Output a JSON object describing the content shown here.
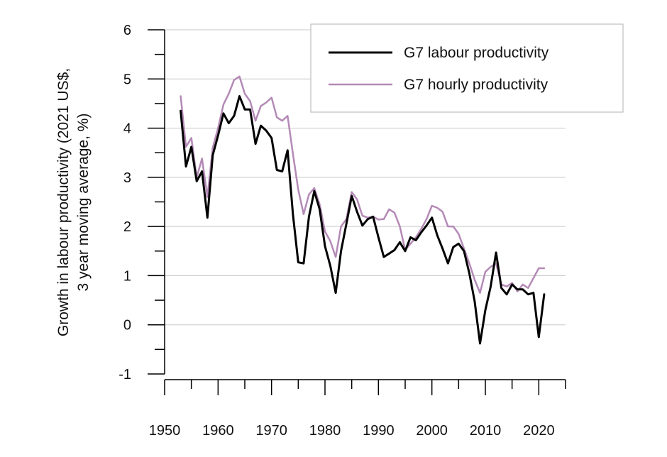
{
  "chart_data": {
    "type": "line",
    "title": "",
    "xlabel": "",
    "ylabel_lines": [
      "Growth in labour productivity (2021 US$,",
      "3 year moving average, %)"
    ],
    "xlim": [
      1950,
      2025
    ],
    "ylim": [
      -1,
      6
    ],
    "xticks": [
      1950,
      1960,
      1970,
      1980,
      1990,
      2000,
      2010,
      2020
    ],
    "yticks": [
      -1,
      0,
      1,
      2,
      3,
      4,
      5,
      6
    ],
    "grid": "horizontal",
    "legend_position": "top-right",
    "colors": {
      "labour": "#000000",
      "hourly": "#b48ab6",
      "grid": "#c8c8c8",
      "axis": "#000000"
    },
    "series": [
      {
        "name": "G7 labour productivity",
        "color": "#000000",
        "x": [
          1953,
          1954,
          1955,
          1956,
          1957,
          1958,
          1959,
          1960,
          1961,
          1962,
          1963,
          1964,
          1965,
          1966,
          1967,
          1968,
          1969,
          1970,
          1971,
          1972,
          1973,
          1974,
          1975,
          1976,
          1977,
          1978,
          1979,
          1980,
          1981,
          1982,
          1983,
          1984,
          1985,
          1986,
          1987,
          1988,
          1989,
          1990,
          1991,
          1992,
          1993,
          1994,
          1995,
          1996,
          1997,
          1998,
          1999,
          2000,
          2001,
          2002,
          2003,
          2004,
          2005,
          2006,
          2007,
          2008,
          2009,
          2010,
          2011,
          2012,
          2013,
          2014,
          2015,
          2016,
          2017,
          2018,
          2019,
          2020,
          2021
        ],
        "y": [
          4.35,
          3.22,
          3.62,
          2.92,
          3.12,
          2.18,
          3.45,
          3.85,
          4.3,
          4.1,
          4.25,
          4.65,
          4.38,
          4.38,
          3.68,
          4.05,
          3.95,
          3.8,
          3.15,
          3.12,
          3.55,
          2.25,
          1.27,
          1.25,
          2.2,
          2.72,
          2.35,
          1.6,
          1.2,
          0.65,
          1.5,
          2.05,
          2.62,
          2.3,
          2.02,
          2.15,
          2.2,
          1.78,
          1.38,
          1.45,
          1.52,
          1.68,
          1.5,
          1.78,
          1.72,
          1.88,
          2.02,
          2.18,
          1.82,
          1.55,
          1.25,
          1.58,
          1.65,
          1.5,
          1.05,
          0.48,
          -0.38,
          0.3,
          0.78,
          1.47,
          0.75,
          0.62,
          0.82,
          0.72,
          0.72,
          0.62,
          0.65,
          -0.25,
          0.62
        ]
      },
      {
        "name": "G7 hourly productivity",
        "color": "#b48ab6",
        "x": [
          1953,
          1954,
          1955,
          1956,
          1957,
          1958,
          1959,
          1960,
          1961,
          1962,
          1963,
          1964,
          1965,
          1966,
          1967,
          1968,
          1969,
          1970,
          1971,
          1972,
          1973,
          1974,
          1975,
          1976,
          1977,
          1978,
          1979,
          1980,
          1981,
          1982,
          1983,
          1984,
          1985,
          1986,
          1987,
          1988,
          1989,
          1990,
          1991,
          1992,
          1993,
          1994,
          1995,
          1996,
          1997,
          1998,
          1999,
          2000,
          2001,
          2002,
          2003,
          2004,
          2005,
          2006,
          2007,
          2008,
          2009,
          2010,
          2011,
          2012,
          2013,
          2014,
          2015,
          2016,
          2017,
          2018,
          2019,
          2020,
          2021
        ],
        "y": [
          4.65,
          3.62,
          3.8,
          3.0,
          3.38,
          2.6,
          3.6,
          4.0,
          4.48,
          4.7,
          4.98,
          5.05,
          4.7,
          4.55,
          4.15,
          4.45,
          4.52,
          4.62,
          4.22,
          4.15,
          4.25,
          3.48,
          2.75,
          2.25,
          2.65,
          2.78,
          2.45,
          1.9,
          1.7,
          1.38,
          2.0,
          2.15,
          2.7,
          2.55,
          2.22,
          2.18,
          2.2,
          2.14,
          2.15,
          2.35,
          2.28,
          2.0,
          1.52,
          1.65,
          1.78,
          1.95,
          2.15,
          2.42,
          2.38,
          2.3,
          2.0,
          2.0,
          1.85,
          1.55,
          1.25,
          0.92,
          0.65,
          1.08,
          1.18,
          1.25,
          0.82,
          0.78,
          0.85,
          0.68,
          0.82,
          0.75,
          0.95,
          1.15,
          1.15
        ]
      }
    ]
  }
}
